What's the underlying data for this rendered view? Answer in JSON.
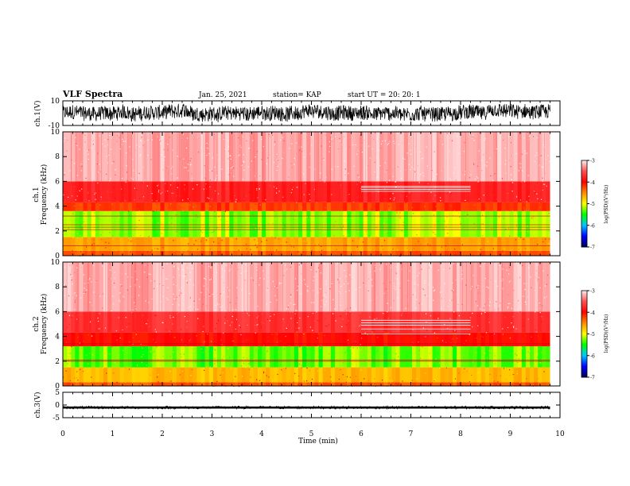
{
  "header": {
    "title": "VLF Spectra",
    "date": "Jan. 25, 2021",
    "station": "station= KAP",
    "start": "start  UT =   20: 20: 1"
  },
  "colors": {
    "colormap": [
      "#ffffff",
      "#ff3030",
      "#ff0000",
      "#ff8c00",
      "#ffff00",
      "#00ff00",
      "#00c8ff",
      "#0000ff",
      "#000060"
    ],
    "line": "#000000"
  },
  "chart_data": [
    {
      "type": "line",
      "name": "ch1-waveform",
      "ylabel": "ch.1(V)",
      "ylim": [
        -10,
        10
      ],
      "yticks": [
        "10",
        "-10"
      ],
      "xlim": [
        0,
        10
      ],
      "description_values": {
        "typical_range": [
          -6,
          6
        ]
      }
    },
    {
      "type": "heatmap",
      "name": "ch1-spectrogram",
      "ylabel": "ch.1\nFrequency (kHz)",
      "ylim": [
        0,
        10
      ],
      "yticks": [
        "0",
        "2",
        "4",
        "6",
        "8",
        "10"
      ],
      "xlim": [
        0,
        10
      ],
      "colorbar": {
        "label": "log(PSD)(V²/Hz)",
        "range": [
          -7,
          -3
        ],
        "ticks": [
          "-3",
          "-4",
          "-5",
          "-6",
          "-7"
        ]
      },
      "bands": [
        {
          "f_low": 0.0,
          "f_high": 0.4,
          "level": -4.3
        },
        {
          "f_low": 0.4,
          "f_high": 1.5,
          "level": -4.6
        },
        {
          "f_low": 1.5,
          "f_high": 3.6,
          "level": -5.2
        },
        {
          "f_low": 3.6,
          "f_high": 4.3,
          "level": -4.2
        },
        {
          "f_low": 4.3,
          "f_high": 6.0,
          "level": -3.8
        },
        {
          "f_low": 6.0,
          "f_high": 10.0,
          "level": -3.2
        }
      ],
      "tones_khz": [
        0.8,
        2.1,
        2.3,
        2.5,
        3.2
      ],
      "segment_tones": {
        "t_start": 6.0,
        "t_end": 8.2,
        "freqs_khz": [
          5.2,
          5.35,
          5.5,
          5.6
        ]
      }
    },
    {
      "type": "heatmap",
      "name": "ch2-spectrogram",
      "ylabel": "ch.2\nFrequency (kHz)",
      "ylim": [
        0,
        10
      ],
      "yticks": [
        "0",
        "2",
        "4",
        "6",
        "8",
        "10"
      ],
      "xlim": [
        0,
        10
      ],
      "colorbar": {
        "label": "log(PSD)(V²/Hz)",
        "range": [
          -7,
          -3
        ],
        "ticks": [
          "-3",
          "-4",
          "-5",
          "-6",
          "-7"
        ]
      },
      "bands": [
        {
          "f_low": 0.0,
          "f_high": 0.3,
          "level": -4.3
        },
        {
          "f_low": 0.3,
          "f_high": 1.5,
          "level": -4.7
        },
        {
          "f_low": 1.5,
          "f_high": 3.2,
          "level": -5.3
        },
        {
          "f_low": 3.2,
          "f_high": 4.3,
          "level": -4.0
        },
        {
          "f_low": 4.3,
          "f_high": 6.0,
          "level": -3.7
        },
        {
          "f_low": 6.0,
          "f_high": 10.0,
          "level": -3.2
        }
      ],
      "tones_khz": [
        2.0,
        2.1,
        3.4
      ],
      "segment_tones": {
        "t_start": 6.0,
        "t_end": 8.2,
        "freqs_khz": [
          4.2,
          4.6,
          4.9,
          5.1,
          5.3
        ]
      }
    },
    {
      "type": "line",
      "name": "ch3-waveform",
      "ylabel": "ch.3(V)",
      "ylim": [
        -5,
        5
      ],
      "yticks": [
        "5",
        "0",
        "-5"
      ],
      "xlim": [
        0,
        10
      ],
      "xlabel": "Time (min)",
      "xticks": [
        "0",
        "1",
        "2",
        "3",
        "4",
        "5",
        "6",
        "7",
        "8",
        "9",
        "10"
      ],
      "description_values": {
        "typical_range": [
          -1.5,
          -0.5
        ]
      }
    }
  ],
  "labels": {
    "ch1_volt": "ch.1(V)",
    "ch1_spec_line1": "ch.1",
    "ch1_spec_line2": "Frequency (kHz)",
    "ch2_spec_line1": "ch.2",
    "ch2_spec_line2": "Frequency (kHz)",
    "ch3_volt": "ch.3(V)",
    "xlabel": "Time (min)",
    "cb_label": "log(PSD)(V²/Hz)"
  }
}
